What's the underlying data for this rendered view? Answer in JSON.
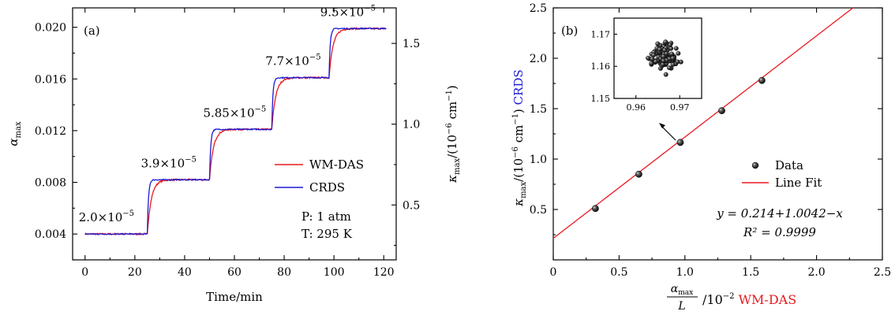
{
  "chart_data": [
    {
      "type": "line",
      "panel": "(a)",
      "xlabel": "Time/min",
      "ylabel_left": "α_max",
      "ylabel_right": "κ_max/(10⁻⁶ cm⁻¹)",
      "xlim": [
        -5,
        125
      ],
      "ylim_left": [
        0.002,
        0.0215
      ],
      "ylim_right": [
        0.16,
        1.72
      ],
      "xticks": [
        "0",
        "20",
        "40",
        "60",
        "80",
        "100",
        "120"
      ],
      "yticks_left": [
        "0.004",
        "0.008",
        "0.012",
        "0.016",
        "0.020"
      ],
      "yticks_right": [
        "0.5",
        "1.0",
        "1.5"
      ],
      "steps": [
        {
          "t_start": 0,
          "t_end": 25,
          "alpha": 0.004
        },
        {
          "t_start": 25,
          "t_end": 50,
          "alpha": 0.0082
        },
        {
          "t_start": 50,
          "t_end": 75,
          "alpha": 0.0121
        },
        {
          "t_start": 75,
          "t_end": 98,
          "alpha": 0.0161
        },
        {
          "t_start": 98,
          "t_end": 121,
          "alpha": 0.0199
        }
      ],
      "step_labels": [
        "2.0×10⁻⁵",
        "3.9×10⁻⁵",
        "5.85×10⁻⁵",
        "7.7×10⁻⁵",
        "9.5×10⁻⁵"
      ],
      "series": [
        {
          "name": "WM-DAS",
          "color": "#e8191f",
          "response_min": 3.5
        },
        {
          "name": "CRDS",
          "color": "#1a1ad6",
          "response_min": 1.0
        }
      ],
      "annotations": [
        "P: 1 atm",
        "T: 295 K"
      ]
    },
    {
      "type": "scatter",
      "panel": "(b)",
      "xlabel_fraction_num": "α_max",
      "xlabel_fraction_den": "L",
      "xlabel_rest": "/10⁻² ",
      "xlabel_colored": "WM-DAS",
      "ylabel": "κ_max/(10⁻⁶ cm⁻¹)",
      "ylabel_colored": "CRDS",
      "xlim": [
        0,
        2.5
      ],
      "ylim": [
        0,
        2.5
      ],
      "xticks": [
        "0",
        "0.5",
        "1.0",
        "1.5",
        "2.0",
        "2.5"
      ],
      "yticks": [
        "0.5",
        "1.0",
        "1.5",
        "2.0",
        "2.5"
      ],
      "points": [
        {
          "x": 0.32,
          "y": 0.51
        },
        {
          "x": 0.65,
          "y": 0.85
        },
        {
          "x": 0.965,
          "y": 1.165
        },
        {
          "x": 1.28,
          "y": 1.48
        },
        {
          "x": 1.585,
          "y": 1.78
        }
      ],
      "fit": {
        "intercept": 0.214,
        "slope": 1.0042,
        "color": "#e8191f"
      },
      "equation": "y = 0.214+1.0042−x",
      "r2": "R² = 0.9999",
      "legend": [
        {
          "label": "Data",
          "marker": "black sphere"
        },
        {
          "label": "Line Fit",
          "color": "#e8191f"
        }
      ],
      "inset": {
        "xlim": [
          0.955,
          0.975
        ],
        "ylim": [
          1.15,
          1.175
        ],
        "xticks": [
          "0.96",
          "0.97"
        ],
        "yticks": [
          "1.15",
          "1.16",
          "1.17"
        ],
        "center": {
          "x": 0.9665,
          "y": 1.163
        }
      }
    }
  ],
  "colors": {
    "wm_das": "#e8191f",
    "crds": "#1a1ad6",
    "axis": "#000000"
  }
}
